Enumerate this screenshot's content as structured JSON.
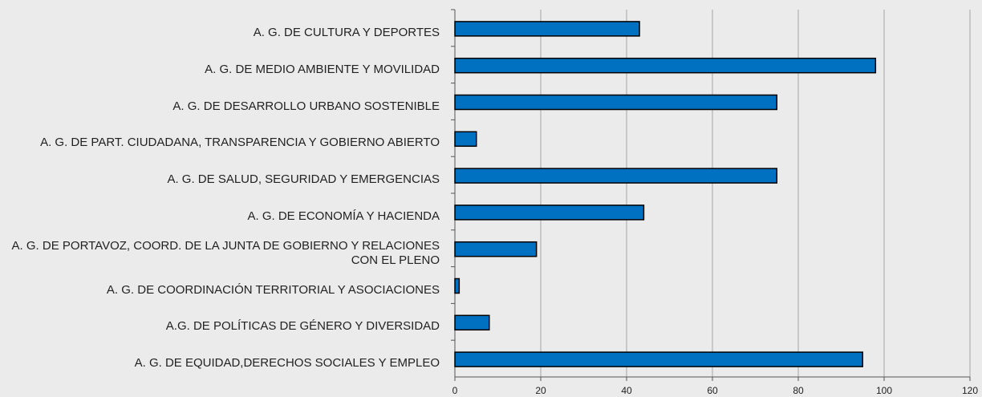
{
  "chart_data": {
    "type": "barh",
    "categories": [
      "A. G. DE CULTURA Y DEPORTES",
      "A. G. DE MEDIO AMBIENTE Y MOVILIDAD",
      "A. G. DE DESARROLLO URBANO SOSTENIBLE",
      "A. G. DE PART. CIUDADANA, TRANSPARENCIA Y GOBIERNO ABIERTO",
      "A. G. DE SALUD, SEGURIDAD Y EMERGENCIAS",
      "A. G. DE ECONOMÍA Y HACIENDA",
      "A. G. DE PORTAVOZ, COORD. DE LA JUNTA DE GOBIERNO Y RELACIONES CON EL PLENO",
      "A. G. DE COORDINACIÓN TERRITORIAL Y ASOCIACIONES",
      "A.G. DE POLÍTICAS DE GÉNERO Y DIVERSIDAD",
      "A. G. DE EQUIDAD,DERECHOS SOCIALES Y EMPLEO"
    ],
    "values": [
      43,
      98,
      75,
      5,
      75,
      44,
      19,
      1,
      8,
      95
    ],
    "color": "#0070c0",
    "xlim": [
      0,
      120
    ],
    "xticks": [
      0,
      20,
      40,
      60,
      80,
      100,
      120
    ],
    "grid": true
  }
}
